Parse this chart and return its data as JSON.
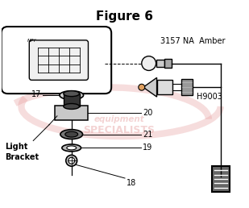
{
  "title": "Figure 6",
  "title_fontsize": 11,
  "title_fontweight": "bold",
  "bg_color": "#ffffff",
  "watermark_line1": "equipment",
  "watermark_line2": "SPECIALISTS",
  "watermark_color": "#e8a8a8",
  "watermark_alpha": 0.5,
  "label_3157": "3157 NA  Amber",
  "label_h9003": "H9003",
  "label_17": "17",
  "label_20": "20",
  "label_21": "21",
  "label_19": "19",
  "label_18": "18",
  "label_lb": "Light\nBracket",
  "line_color": "#000000",
  "fig_width": 3.09,
  "fig_height": 2.58,
  "dpi": 100
}
